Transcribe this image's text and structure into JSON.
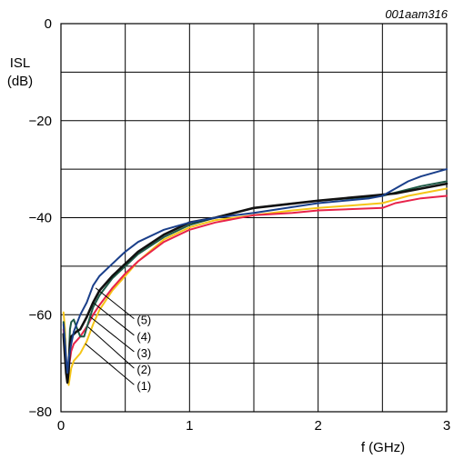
{
  "chart_data": {
    "type": "line",
    "figure_id": "001aam316",
    "ylabel_line1": "ISL",
    "ylabel_line2": "(dB)",
    "xlabel": "f (GHz)",
    "xlim": [
      0,
      3
    ],
    "ylim": [
      -80,
      0
    ],
    "grid": true,
    "x_ticks": [
      0,
      1,
      2,
      3
    ],
    "x_tick_labels": [
      "0",
      "1",
      "2",
      "3"
    ],
    "y_ticks": [
      -80,
      -60,
      -40,
      -20,
      0
    ],
    "y_tick_labels": [
      "−80",
      "−60",
      "−40",
      "−20",
      "0"
    ],
    "series": [
      {
        "name": "(1)",
        "color": "#f5c518",
        "width": 2,
        "x": [
          0.02,
          0.03,
          0.04,
          0.05,
          0.06,
          0.08,
          0.1,
          0.15,
          0.2,
          0.25,
          0.3,
          0.4,
          0.5,
          0.6,
          0.8,
          1.0,
          1.2,
          1.5,
          1.8,
          2.0,
          2.5,
          2.7,
          2.9,
          3.0
        ],
        "y": [
          -59.5,
          -62.5,
          -69,
          -73,
          -74.5,
          -71,
          -69.5,
          -68,
          -65.5,
          -62,
          -59,
          -55,
          -52,
          -49,
          -44.5,
          -42,
          -40.5,
          -39.5,
          -38.5,
          -38,
          -37,
          -35.5,
          -34.5,
          -34
        ]
      },
      {
        "name": "(2)",
        "color": "#e8234a",
        "width": 2,
        "x": [
          0.02,
          0.03,
          0.04,
          0.05,
          0.06,
          0.08,
          0.1,
          0.15,
          0.2,
          0.25,
          0.3,
          0.4,
          0.5,
          0.6,
          0.8,
          1.0,
          1.2,
          1.5,
          1.8,
          2.0,
          2.5,
          2.6,
          2.8,
          3.0
        ],
        "y": [
          -63,
          -66,
          -70.5,
          -73,
          -71,
          -67.5,
          -66,
          -64.5,
          -62.5,
          -60,
          -58,
          -54.5,
          -51.5,
          -49,
          -45,
          -42.5,
          -41,
          -39.5,
          -39,
          -38.5,
          -38,
          -37,
          -36,
          -35.5
        ]
      },
      {
        "name": "(3)",
        "color": "#1e5a46",
        "width": 2,
        "x": [
          0.02,
          0.03,
          0.04,
          0.05,
          0.06,
          0.07,
          0.08,
          0.1,
          0.12,
          0.15,
          0.18,
          0.22,
          0.25,
          0.3,
          0.4,
          0.5,
          0.6,
          0.8,
          1.0,
          1.2,
          1.5,
          2.0,
          2.5,
          2.8,
          3.0
        ],
        "y": [
          -61.5,
          -65,
          -70.5,
          -73,
          -70,
          -63,
          -61.5,
          -61,
          -62.5,
          -64.5,
          -64.5,
          -61,
          -58.5,
          -56,
          -52.5,
          -50,
          -47.5,
          -44,
          -41.5,
          -40,
          -38,
          -36.5,
          -35.5,
          -33.5,
          -32.5
        ]
      },
      {
        "name": "(4)",
        "color": "#111111",
        "width": 2.6,
        "x": [
          0.02,
          0.03,
          0.04,
          0.05,
          0.06,
          0.07,
          0.08,
          0.1,
          0.12,
          0.15,
          0.2,
          0.25,
          0.3,
          0.4,
          0.5,
          0.6,
          0.8,
          1.0,
          1.2,
          1.5,
          2.0,
          2.4,
          2.6,
          2.8,
          3.0
        ],
        "y": [
          -64,
          -68,
          -72,
          -74,
          -71.5,
          -66,
          -64.5,
          -64,
          -63.5,
          -63,
          -60.5,
          -57.5,
          -55,
          -52,
          -49.5,
          -47,
          -43.5,
          -41,
          -40,
          -38,
          -36.5,
          -35.5,
          -35,
          -34,
          -33
        ]
      },
      {
        "name": "(5)",
        "color": "#1a3f8a",
        "width": 2,
        "x": [
          0.02,
          0.03,
          0.04,
          0.05,
          0.06,
          0.08,
          0.1,
          0.15,
          0.2,
          0.25,
          0.3,
          0.4,
          0.5,
          0.6,
          0.8,
          1.0,
          1.2,
          1.5,
          2.0,
          2.4,
          2.5,
          2.6,
          2.7,
          2.8,
          3.0
        ],
        "y": [
          -62,
          -65,
          -69,
          -72,
          -69,
          -66,
          -63.5,
          -60,
          -57.5,
          -54,
          -52,
          -49.5,
          -47,
          -45,
          -42.5,
          -41,
          -40,
          -39,
          -37,
          -36,
          -35.5,
          -34,
          -32.5,
          -31.5,
          -30
        ]
      }
    ],
    "callouts": [
      {
        "label": "(5)",
        "text_x": 0.59,
        "text_y": -61.2,
        "target_x": 0.27,
        "target_y": -54.5
      },
      {
        "label": "(4)",
        "text_x": 0.59,
        "text_y": -64.6,
        "target_x": 0.25,
        "target_y": -57.5
      },
      {
        "label": "(3)",
        "text_x": 0.59,
        "text_y": -68.0,
        "target_x": 0.23,
        "target_y": -60.5
      },
      {
        "label": "(2)",
        "text_x": 0.59,
        "text_y": -71.4,
        "target_x": 0.21,
        "target_y": -62.5
      },
      {
        "label": "(1)",
        "text_x": 0.59,
        "text_y": -74.8,
        "target_x": 0.19,
        "target_y": -66.0
      }
    ]
  }
}
